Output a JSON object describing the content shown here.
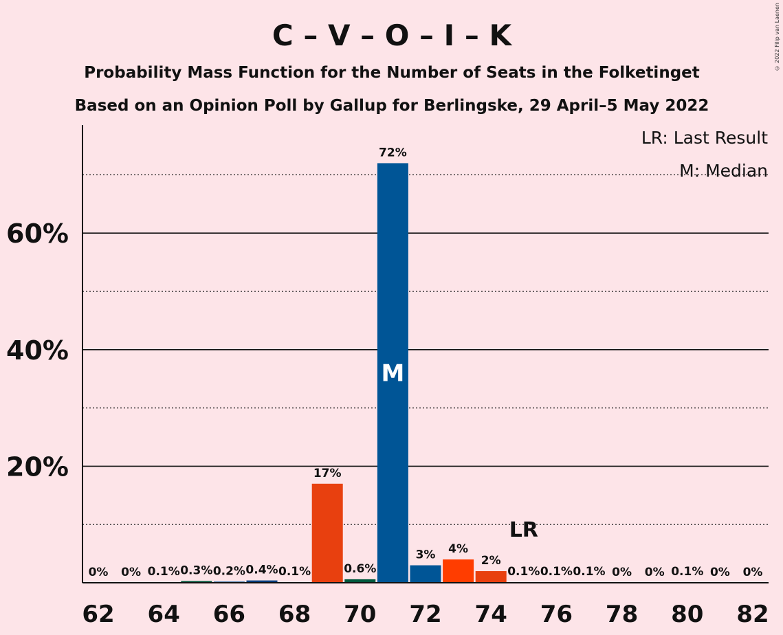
{
  "chart_data": {
    "type": "bar",
    "title": "C – V – O – I – K",
    "subtitle1": "Probability Mass Function for the Number of Seats in the Folketinget",
    "subtitle2": "Based on an Opinion Poll by Gallup for Berlingske, 29 April–5 May 2022",
    "x": [
      62,
      63,
      64,
      65,
      66,
      67,
      68,
      69,
      70,
      71,
      72,
      73,
      74,
      75,
      76,
      77,
      78,
      79,
      80,
      81,
      82
    ],
    "values": [
      0,
      0,
      0.1,
      0.3,
      0.2,
      0.4,
      0.1,
      17,
      0.6,
      72,
      3,
      4,
      2,
      0.1,
      0.1,
      0.1,
      0,
      0,
      0.1,
      0,
      0
    ],
    "labels": [
      "0%",
      "0%",
      "0.1%",
      "0.3%",
      "0.2%",
      "0.4%",
      "0.1%",
      "17%",
      "0.6%",
      "72%",
      "3%",
      "4%",
      "2%",
      "0.1%",
      "0.1%",
      "0.1%",
      "0%",
      "0%",
      "0.1%",
      "0%",
      "0%"
    ],
    "bar_colors": [
      "#005596",
      "#005596",
      "#005596",
      "#00583C",
      "#005596",
      "#003C7C",
      "#005596",
      "#E8400F",
      "#00583C",
      "#005596",
      "#005596",
      "#FF3D00",
      "#E8400F",
      "#005596",
      "#005596",
      "#005596",
      "#005596",
      "#005596",
      "#005596",
      "#005596",
      "#005596"
    ],
    "xticks": [
      62,
      64,
      66,
      68,
      70,
      72,
      74,
      76,
      78,
      80,
      82
    ],
    "yticks": [
      {
        "value": 20,
        "label": "20%"
      },
      {
        "value": 40,
        "label": "40%"
      },
      {
        "value": 60,
        "label": "60%"
      }
    ],
    "minor_gridlines": [
      10,
      30,
      50,
      70
    ],
    "ylim": [
      0,
      78
    ],
    "median_seat": 71,
    "median_marker": "M",
    "last_result_seat": 75,
    "last_result_marker": "LR",
    "legend": [
      "LR: Last Result",
      "M: Median"
    ],
    "legend_position": "top-right"
  },
  "copyright": "© 2022 Filip van Laenen"
}
